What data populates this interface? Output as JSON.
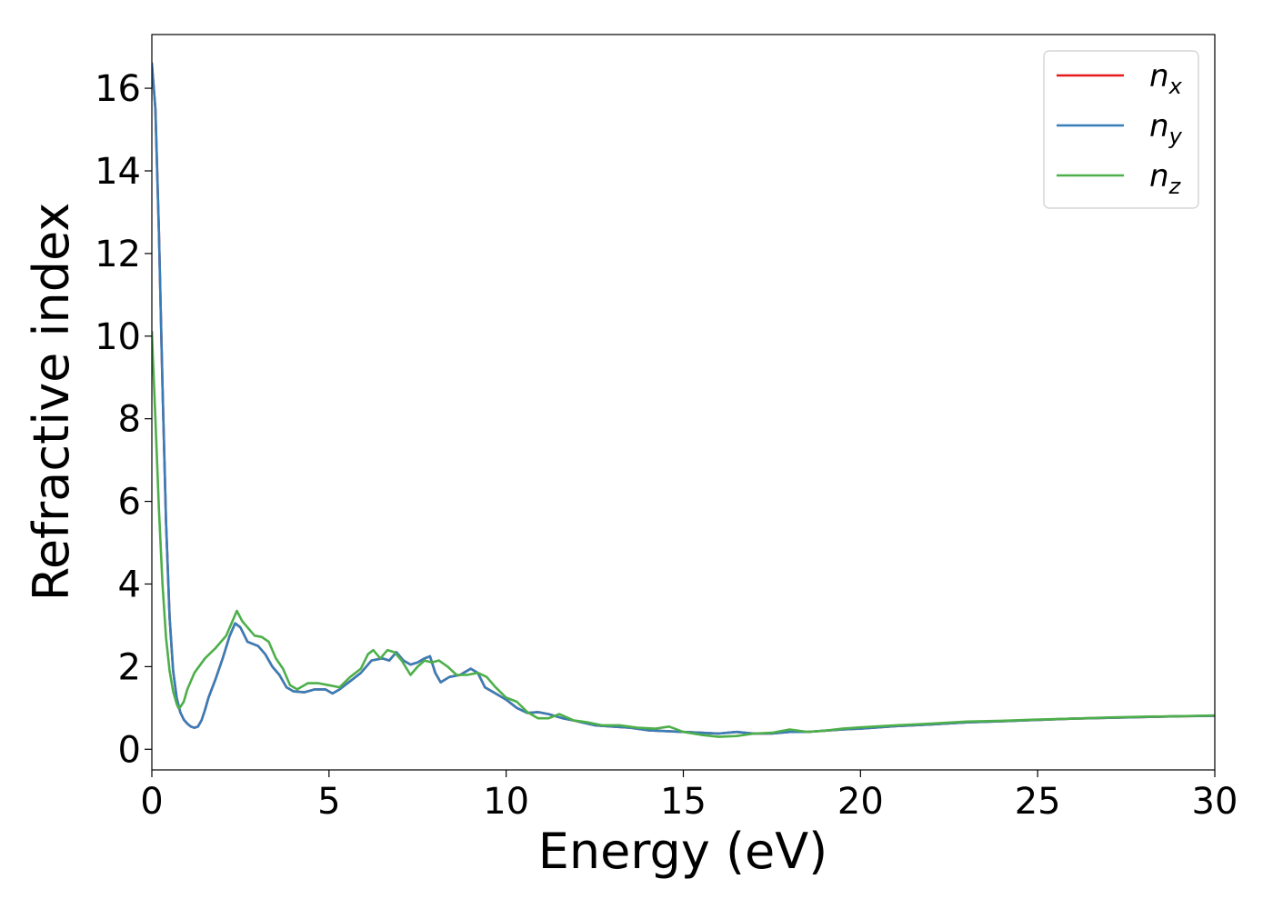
{
  "chart_data": {
    "type": "line",
    "title": "",
    "xlabel": "Energy (eV)",
    "ylabel": "Refractive index",
    "xlim": [
      0,
      30
    ],
    "ylim": [
      -0.5,
      17.3
    ],
    "xticks": [
      0,
      5,
      10,
      15,
      20,
      25,
      30
    ],
    "yticks": [
      0,
      2,
      4,
      6,
      8,
      10,
      12,
      14,
      16
    ],
    "grid": false,
    "legend": "top-right",
    "series": [
      {
        "name": "n_x",
        "label_base": "n",
        "label_sub": "x",
        "color": "#e41a1c",
        "points": [
          [
            0.0,
            16.6
          ],
          [
            0.1,
            15.5
          ],
          [
            0.2,
            12.5
          ],
          [
            0.3,
            8.8
          ],
          [
            0.4,
            5.5
          ],
          [
            0.5,
            3.2
          ],
          [
            0.6,
            1.9
          ],
          [
            0.7,
            1.25
          ],
          [
            0.8,
            0.9
          ],
          [
            0.9,
            0.72
          ],
          [
            1.0,
            0.62
          ],
          [
            1.1,
            0.55
          ],
          [
            1.2,
            0.52
          ],
          [
            1.3,
            0.55
          ],
          [
            1.4,
            0.7
          ],
          [
            1.5,
            0.95
          ],
          [
            1.6,
            1.25
          ],
          [
            1.8,
            1.7
          ],
          [
            2.0,
            2.2
          ],
          [
            2.2,
            2.75
          ],
          [
            2.35,
            3.05
          ],
          [
            2.5,
            2.95
          ],
          [
            2.7,
            2.6
          ],
          [
            3.0,
            2.5
          ],
          [
            3.2,
            2.3
          ],
          [
            3.4,
            2.0
          ],
          [
            3.6,
            1.8
          ],
          [
            3.8,
            1.5
          ],
          [
            4.0,
            1.4
          ],
          [
            4.3,
            1.38
          ],
          [
            4.6,
            1.45
          ],
          [
            4.9,
            1.45
          ],
          [
            5.1,
            1.35
          ],
          [
            5.3,
            1.45
          ],
          [
            5.6,
            1.65
          ],
          [
            5.9,
            1.85
          ],
          [
            6.2,
            2.15
          ],
          [
            6.5,
            2.2
          ],
          [
            6.7,
            2.15
          ],
          [
            6.9,
            2.35
          ],
          [
            7.1,
            2.15
          ],
          [
            7.3,
            2.05
          ],
          [
            7.5,
            2.1
          ],
          [
            7.7,
            2.2
          ],
          [
            7.85,
            2.25
          ],
          [
            8.0,
            1.85
          ],
          [
            8.15,
            1.62
          ],
          [
            8.4,
            1.75
          ],
          [
            8.7,
            1.8
          ],
          [
            9.0,
            1.95
          ],
          [
            9.2,
            1.85
          ],
          [
            9.4,
            1.5
          ],
          [
            9.7,
            1.35
          ],
          [
            10.0,
            1.2
          ],
          [
            10.3,
            1.0
          ],
          [
            10.6,
            0.88
          ],
          [
            10.9,
            0.9
          ],
          [
            11.2,
            0.85
          ],
          [
            11.6,
            0.75
          ],
          [
            12.0,
            0.68
          ],
          [
            12.5,
            0.58
          ],
          [
            13.0,
            0.55
          ],
          [
            13.5,
            0.52
          ],
          [
            14.0,
            0.46
          ],
          [
            14.5,
            0.44
          ],
          [
            15.0,
            0.42
          ],
          [
            15.5,
            0.4
          ],
          [
            16.0,
            0.38
          ],
          [
            16.5,
            0.42
          ],
          [
            17.0,
            0.38
          ],
          [
            17.5,
            0.38
          ],
          [
            18.0,
            0.42
          ],
          [
            18.5,
            0.42
          ],
          [
            19.0,
            0.45
          ],
          [
            19.5,
            0.48
          ],
          [
            20.0,
            0.5
          ],
          [
            21.0,
            0.56
          ],
          [
            22.0,
            0.6
          ],
          [
            23.0,
            0.65
          ],
          [
            24.0,
            0.68
          ],
          [
            25.0,
            0.71
          ],
          [
            26.0,
            0.74
          ],
          [
            27.0,
            0.76
          ],
          [
            28.0,
            0.78
          ],
          [
            29.0,
            0.8
          ],
          [
            30.0,
            0.81
          ]
        ]
      },
      {
        "name": "n_y",
        "label_base": "n",
        "label_sub": "y",
        "color": "#377eb8",
        "points": [
          [
            0.0,
            16.6
          ],
          [
            0.1,
            15.5
          ],
          [
            0.2,
            12.5
          ],
          [
            0.3,
            8.8
          ],
          [
            0.4,
            5.5
          ],
          [
            0.5,
            3.2
          ],
          [
            0.6,
            1.9
          ],
          [
            0.7,
            1.25
          ],
          [
            0.8,
            0.9
          ],
          [
            0.9,
            0.72
          ],
          [
            1.0,
            0.62
          ],
          [
            1.1,
            0.55
          ],
          [
            1.2,
            0.52
          ],
          [
            1.3,
            0.55
          ],
          [
            1.4,
            0.7
          ],
          [
            1.5,
            0.95
          ],
          [
            1.6,
            1.25
          ],
          [
            1.8,
            1.7
          ],
          [
            2.0,
            2.2
          ],
          [
            2.2,
            2.75
          ],
          [
            2.35,
            3.05
          ],
          [
            2.5,
            2.95
          ],
          [
            2.7,
            2.6
          ],
          [
            3.0,
            2.5
          ],
          [
            3.2,
            2.3
          ],
          [
            3.4,
            2.0
          ],
          [
            3.6,
            1.8
          ],
          [
            3.8,
            1.5
          ],
          [
            4.0,
            1.4
          ],
          [
            4.3,
            1.38
          ],
          [
            4.6,
            1.45
          ],
          [
            4.9,
            1.45
          ],
          [
            5.1,
            1.35
          ],
          [
            5.3,
            1.45
          ],
          [
            5.6,
            1.65
          ],
          [
            5.9,
            1.85
          ],
          [
            6.2,
            2.15
          ],
          [
            6.5,
            2.2
          ],
          [
            6.7,
            2.15
          ],
          [
            6.9,
            2.35
          ],
          [
            7.1,
            2.15
          ],
          [
            7.3,
            2.05
          ],
          [
            7.5,
            2.1
          ],
          [
            7.7,
            2.2
          ],
          [
            7.85,
            2.25
          ],
          [
            8.0,
            1.85
          ],
          [
            8.15,
            1.62
          ],
          [
            8.4,
            1.75
          ],
          [
            8.7,
            1.8
          ],
          [
            9.0,
            1.95
          ],
          [
            9.2,
            1.85
          ],
          [
            9.4,
            1.5
          ],
          [
            9.7,
            1.35
          ],
          [
            10.0,
            1.2
          ],
          [
            10.3,
            1.0
          ],
          [
            10.6,
            0.88
          ],
          [
            10.9,
            0.9
          ],
          [
            11.2,
            0.85
          ],
          [
            11.6,
            0.75
          ],
          [
            12.0,
            0.68
          ],
          [
            12.5,
            0.58
          ],
          [
            13.0,
            0.55
          ],
          [
            13.5,
            0.52
          ],
          [
            14.0,
            0.46
          ],
          [
            14.5,
            0.44
          ],
          [
            15.0,
            0.42
          ],
          [
            15.5,
            0.4
          ],
          [
            16.0,
            0.38
          ],
          [
            16.5,
            0.42
          ],
          [
            17.0,
            0.38
          ],
          [
            17.5,
            0.38
          ],
          [
            18.0,
            0.42
          ],
          [
            18.5,
            0.42
          ],
          [
            19.0,
            0.45
          ],
          [
            19.5,
            0.48
          ],
          [
            20.0,
            0.5
          ],
          [
            21.0,
            0.56
          ],
          [
            22.0,
            0.6
          ],
          [
            23.0,
            0.65
          ],
          [
            24.0,
            0.68
          ],
          [
            25.0,
            0.71
          ],
          [
            26.0,
            0.74
          ],
          [
            27.0,
            0.76
          ],
          [
            28.0,
            0.78
          ],
          [
            29.0,
            0.8
          ],
          [
            30.0,
            0.81
          ]
        ]
      },
      {
        "name": "n_z",
        "label_base": "n",
        "label_sub": "z",
        "color": "#4daf4a",
        "points": [
          [
            0.0,
            10.1
          ],
          [
            0.1,
            8.0
          ],
          [
            0.2,
            5.8
          ],
          [
            0.3,
            4.0
          ],
          [
            0.4,
            2.7
          ],
          [
            0.5,
            1.9
          ],
          [
            0.6,
            1.4
          ],
          [
            0.7,
            1.1
          ],
          [
            0.75,
            1.0
          ],
          [
            0.8,
            1.02
          ],
          [
            0.9,
            1.15
          ],
          [
            1.0,
            1.45
          ],
          [
            1.2,
            1.85
          ],
          [
            1.5,
            2.2
          ],
          [
            1.8,
            2.45
          ],
          [
            2.1,
            2.75
          ],
          [
            2.3,
            3.15
          ],
          [
            2.4,
            3.35
          ],
          [
            2.55,
            3.1
          ],
          [
            2.7,
            2.95
          ],
          [
            2.9,
            2.75
          ],
          [
            3.1,
            2.72
          ],
          [
            3.3,
            2.6
          ],
          [
            3.5,
            2.2
          ],
          [
            3.7,
            1.95
          ],
          [
            3.9,
            1.55
          ],
          [
            4.1,
            1.45
          ],
          [
            4.4,
            1.6
          ],
          [
            4.7,
            1.6
          ],
          [
            5.0,
            1.55
          ],
          [
            5.3,
            1.5
          ],
          [
            5.6,
            1.75
          ],
          [
            5.9,
            1.95
          ],
          [
            6.1,
            2.3
          ],
          [
            6.25,
            2.4
          ],
          [
            6.45,
            2.2
          ],
          [
            6.65,
            2.4
          ],
          [
            6.85,
            2.35
          ],
          [
            7.05,
            2.15
          ],
          [
            7.3,
            1.8
          ],
          [
            7.5,
            2.0
          ],
          [
            7.7,
            2.15
          ],
          [
            7.9,
            2.1
          ],
          [
            8.1,
            2.15
          ],
          [
            8.35,
            2.0
          ],
          [
            8.6,
            1.8
          ],
          [
            8.9,
            1.8
          ],
          [
            9.2,
            1.85
          ],
          [
            9.45,
            1.75
          ],
          [
            9.7,
            1.5
          ],
          [
            10.0,
            1.25
          ],
          [
            10.3,
            1.15
          ],
          [
            10.6,
            0.9
          ],
          [
            10.9,
            0.75
          ],
          [
            11.2,
            0.75
          ],
          [
            11.5,
            0.85
          ],
          [
            11.9,
            0.7
          ],
          [
            12.3,
            0.65
          ],
          [
            12.7,
            0.58
          ],
          [
            13.2,
            0.58
          ],
          [
            13.7,
            0.52
          ],
          [
            14.2,
            0.5
          ],
          [
            14.6,
            0.55
          ],
          [
            15.0,
            0.42
          ],
          [
            15.5,
            0.35
          ],
          [
            16.0,
            0.3
          ],
          [
            16.5,
            0.32
          ],
          [
            17.0,
            0.38
          ],
          [
            17.5,
            0.4
          ],
          [
            18.0,
            0.48
          ],
          [
            18.5,
            0.42
          ],
          [
            19.0,
            0.45
          ],
          [
            19.5,
            0.5
          ],
          [
            20.0,
            0.53
          ],
          [
            21.0,
            0.58
          ],
          [
            22.0,
            0.62
          ],
          [
            23.0,
            0.67
          ],
          [
            24.0,
            0.69
          ],
          [
            25.0,
            0.72
          ],
          [
            26.0,
            0.74
          ],
          [
            27.0,
            0.77
          ],
          [
            28.0,
            0.79
          ],
          [
            29.0,
            0.8
          ],
          [
            30.0,
            0.82
          ]
        ]
      }
    ]
  }
}
